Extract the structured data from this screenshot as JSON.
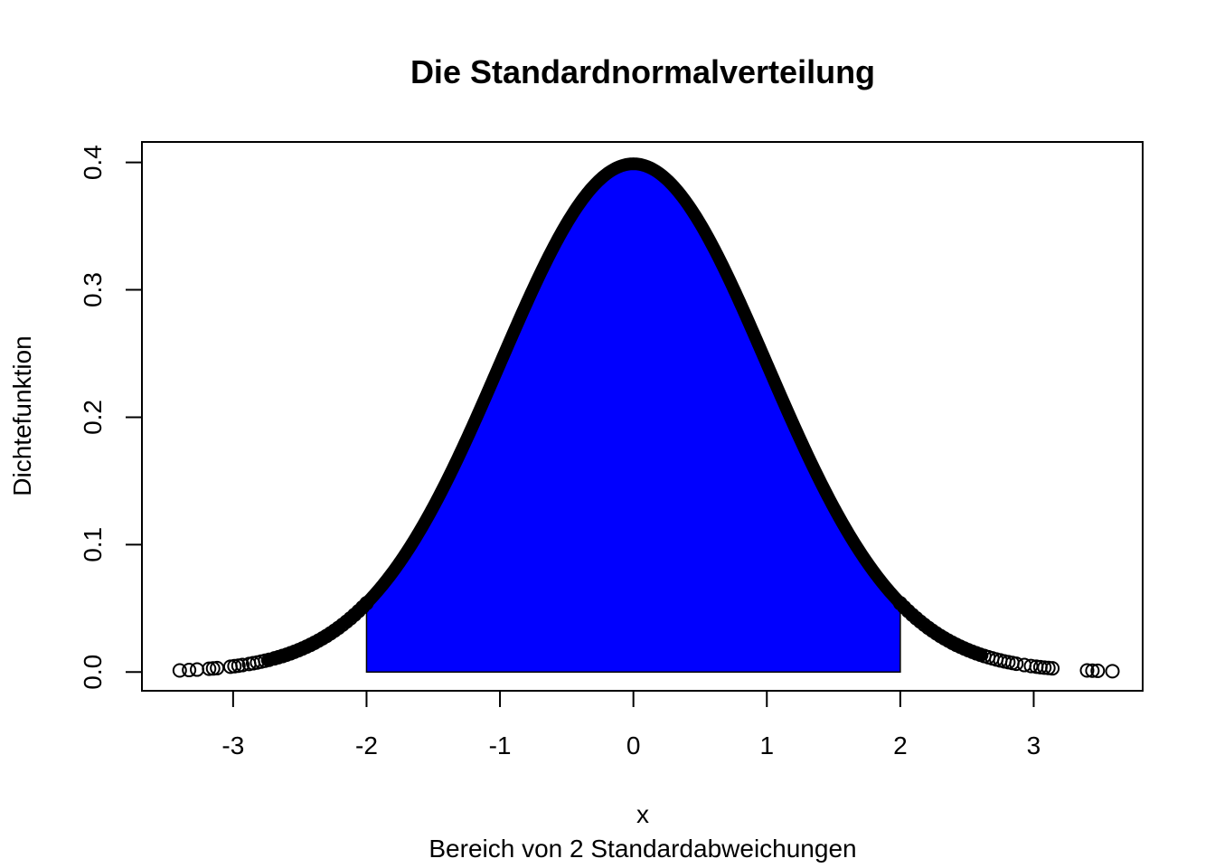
{
  "chart_data": {
    "type": "scatter",
    "title": "Die Standardnormalverteilung",
    "xlabel": "x",
    "ylabel": "Dichtefunktion",
    "subtitle": "Bereich von 2 Standardabweichungen",
    "xlim": [
      -3.6833,
      3.8167
    ],
    "ylim": [
      -0.01474,
      0.41609
    ],
    "x_ticks": [
      {
        "value": -3,
        "label": "-3"
      },
      {
        "value": -2,
        "label": "-2"
      },
      {
        "value": -1,
        "label": "-1"
      },
      {
        "value": 0,
        "label": "0"
      },
      {
        "value": 1,
        "label": "1"
      },
      {
        "value": 2,
        "label": "2"
      },
      {
        "value": 3,
        "label": "3"
      }
    ],
    "y_ticks": [
      {
        "value": 0.0,
        "label": "0.0"
      },
      {
        "value": 0.1,
        "label": "0.1"
      },
      {
        "value": 0.2,
        "label": "0.2"
      },
      {
        "value": 0.3,
        "label": "0.3"
      },
      {
        "value": 0.4,
        "label": "0.4"
      }
    ],
    "series": [
      {
        "points": "standard normal density f(x) evaluated at sampled x",
        "x": [
          -3.4,
          -3.33,
          -3.27,
          -3.18,
          -3.15,
          -3.12,
          -3.02,
          -2.99,
          -2.96,
          -2.93,
          -2.88,
          -2.85,
          -2.82,
          -2.79,
          -2.76,
          -2.73,
          -2.69,
          -2.66,
          -2.63,
          -2.6,
          -2.57,
          -2.54,
          -2.51,
          -2.48,
          -2.45,
          -2.42,
          -2.39,
          -2.36,
          -2.33,
          -2.3,
          -2.27,
          -2.24,
          -2.21,
          -2.18,
          -2.15,
          -2.12,
          -2.09,
          -2.06,
          -2.03,
          -2.0,
          2.0,
          2.03,
          2.06,
          2.09,
          2.12,
          2.15,
          2.18,
          2.21,
          2.24,
          2.27,
          2.3,
          2.33,
          2.36,
          2.39,
          2.42,
          2.45,
          2.48,
          2.51,
          2.54,
          2.57,
          2.6,
          2.63,
          2.66,
          2.69,
          2.72,
          2.75,
          2.78,
          2.81,
          2.84,
          2.87,
          2.93,
          2.98,
          3.02,
          3.05,
          3.08,
          3.11,
          3.14,
          3.4,
          3.44,
          3.48,
          3.59
        ],
        "color": "#000000"
      }
    ],
    "shaded_region": {
      "x_from": -2,
      "x_to": 2,
      "color": "#0000ff"
    },
    "curve_color": "#000000"
  }
}
